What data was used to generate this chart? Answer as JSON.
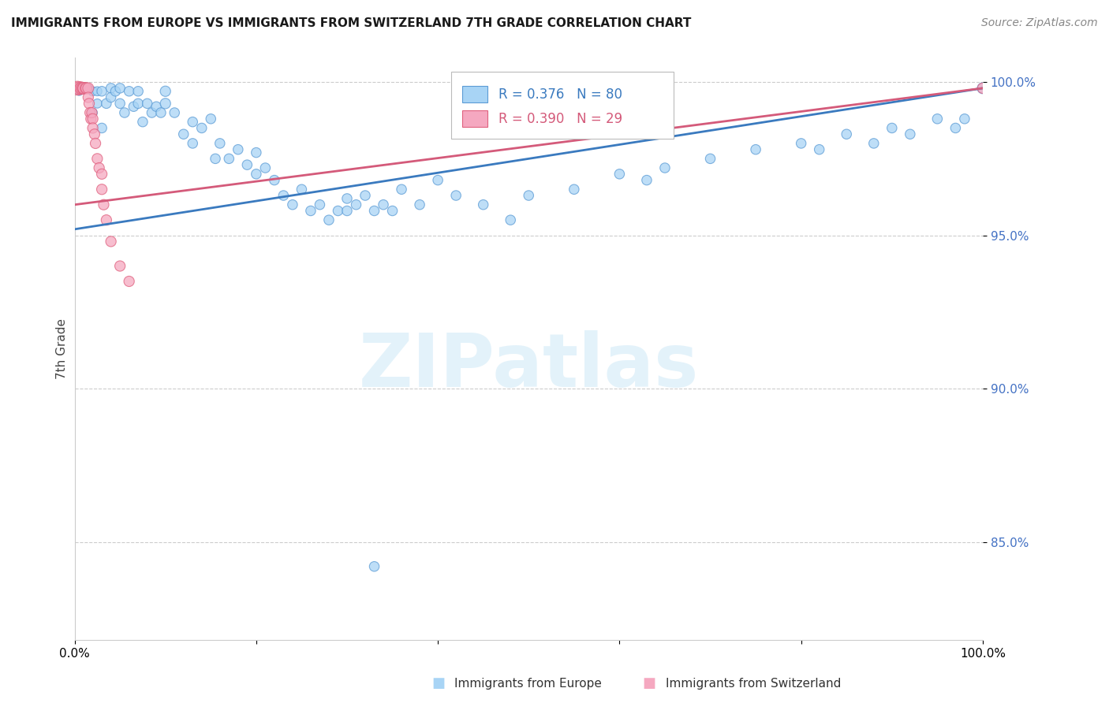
{
  "title": "IMMIGRANTS FROM EUROPE VS IMMIGRANTS FROM SWITZERLAND 7TH GRADE CORRELATION CHART",
  "source": "Source: ZipAtlas.com",
  "ylabel": "7th Grade",
  "legend_label_blue": "Immigrants from Europe",
  "legend_label_pink": "Immigrants from Switzerland",
  "blue_R": 0.376,
  "blue_N": 80,
  "pink_R": 0.39,
  "pink_N": 29,
  "blue_color": "#a8d4f5",
  "blue_edge_color": "#5b9bd5",
  "blue_line_color": "#3a7abf",
  "pink_color": "#f5a8c0",
  "pink_edge_color": "#e0607e",
  "pink_line_color": "#d45a7a",
  "xmin": 0.0,
  "xmax": 1.0,
  "ymin": 0.818,
  "ymax": 1.008,
  "yticks": [
    0.85,
    0.9,
    0.95,
    1.0
  ],
  "ytick_labels": [
    "85.0%",
    "90.0%",
    "95.0%",
    "100.0%"
  ],
  "watermark_text": "ZIPatlas",
  "blue_scatter_x": [
    0.005,
    0.01,
    0.015,
    0.02,
    0.02,
    0.025,
    0.025,
    0.03,
    0.03,
    0.035,
    0.04,
    0.04,
    0.045,
    0.05,
    0.05,
    0.055,
    0.06,
    0.065,
    0.07,
    0.07,
    0.075,
    0.08,
    0.085,
    0.09,
    0.095,
    0.1,
    0.1,
    0.11,
    0.12,
    0.13,
    0.13,
    0.14,
    0.15,
    0.155,
    0.16,
    0.17,
    0.18,
    0.19,
    0.2,
    0.2,
    0.21,
    0.22,
    0.23,
    0.24,
    0.25,
    0.26,
    0.27,
    0.28,
    0.29,
    0.3,
    0.3,
    0.31,
    0.32,
    0.33,
    0.34,
    0.35,
    0.36,
    0.38,
    0.4,
    0.42,
    0.45,
    0.48,
    0.5,
    0.55,
    0.6,
    0.63,
    0.65,
    0.7,
    0.75,
    0.8,
    0.82,
    0.85,
    0.88,
    0.9,
    0.92,
    0.95,
    0.97,
    0.98,
    1.0,
    0.33
  ],
  "blue_scatter_y": [
    0.997,
    0.998,
    0.998,
    0.997,
    0.99,
    0.997,
    0.993,
    0.997,
    0.985,
    0.993,
    0.998,
    0.995,
    0.997,
    0.998,
    0.993,
    0.99,
    0.997,
    0.992,
    0.997,
    0.993,
    0.987,
    0.993,
    0.99,
    0.992,
    0.99,
    0.997,
    0.993,
    0.99,
    0.983,
    0.987,
    0.98,
    0.985,
    0.988,
    0.975,
    0.98,
    0.975,
    0.978,
    0.973,
    0.977,
    0.97,
    0.972,
    0.968,
    0.963,
    0.96,
    0.965,
    0.958,
    0.96,
    0.955,
    0.958,
    0.962,
    0.958,
    0.96,
    0.963,
    0.958,
    0.96,
    0.958,
    0.965,
    0.96,
    0.968,
    0.963,
    0.96,
    0.955,
    0.963,
    0.965,
    0.97,
    0.968,
    0.972,
    0.975,
    0.978,
    0.98,
    0.978,
    0.983,
    0.98,
    0.985,
    0.983,
    0.988,
    0.985,
    0.988,
    0.998,
    0.842
  ],
  "blue_marker_sizes": [
    60,
    60,
    60,
    70,
    70,
    70,
    70,
    80,
    80,
    80,
    80,
    80,
    80,
    80,
    80,
    80,
    80,
    80,
    80,
    80,
    80,
    80,
    80,
    80,
    80,
    90,
    90,
    80,
    80,
    80,
    80,
    80,
    80,
    80,
    80,
    80,
    80,
    80,
    80,
    80,
    80,
    80,
    80,
    80,
    80,
    80,
    80,
    80,
    80,
    80,
    80,
    80,
    80,
    80,
    80,
    80,
    80,
    80,
    80,
    80,
    80,
    80,
    80,
    80,
    80,
    80,
    80,
    80,
    80,
    80,
    80,
    80,
    80,
    80,
    80,
    80,
    80,
    80,
    100,
    80
  ],
  "pink_scatter_x": [
    0.003,
    0.005,
    0.007,
    0.008,
    0.009,
    0.01,
    0.01,
    0.012,
    0.013,
    0.015,
    0.015,
    0.016,
    0.017,
    0.018,
    0.019,
    0.02,
    0.02,
    0.022,
    0.023,
    0.025,
    0.027,
    0.03,
    0.03,
    0.032,
    0.035,
    0.04,
    0.05,
    0.06,
    1.0
  ],
  "pink_scatter_y": [
    0.998,
    0.998,
    0.998,
    0.998,
    0.998,
    0.998,
    0.998,
    0.998,
    0.998,
    0.998,
    0.995,
    0.993,
    0.99,
    0.988,
    0.99,
    0.988,
    0.985,
    0.983,
    0.98,
    0.975,
    0.972,
    0.97,
    0.965,
    0.96,
    0.955,
    0.948,
    0.94,
    0.935,
    0.998
  ],
  "pink_marker_sizes": [
    160,
    140,
    130,
    120,
    110,
    110,
    110,
    100,
    100,
    100,
    90,
    90,
    90,
    90,
    90,
    90,
    90,
    90,
    90,
    90,
    90,
    90,
    90,
    90,
    90,
    90,
    90,
    90,
    90
  ],
  "blue_trend_x": [
    0.0,
    1.0
  ],
  "blue_trend_y_start": 0.952,
  "blue_trend_y_end": 0.998,
  "pink_trend_x": [
    0.0,
    1.0
  ],
  "pink_trend_y_start": 0.96,
  "pink_trend_y_end": 0.998
}
